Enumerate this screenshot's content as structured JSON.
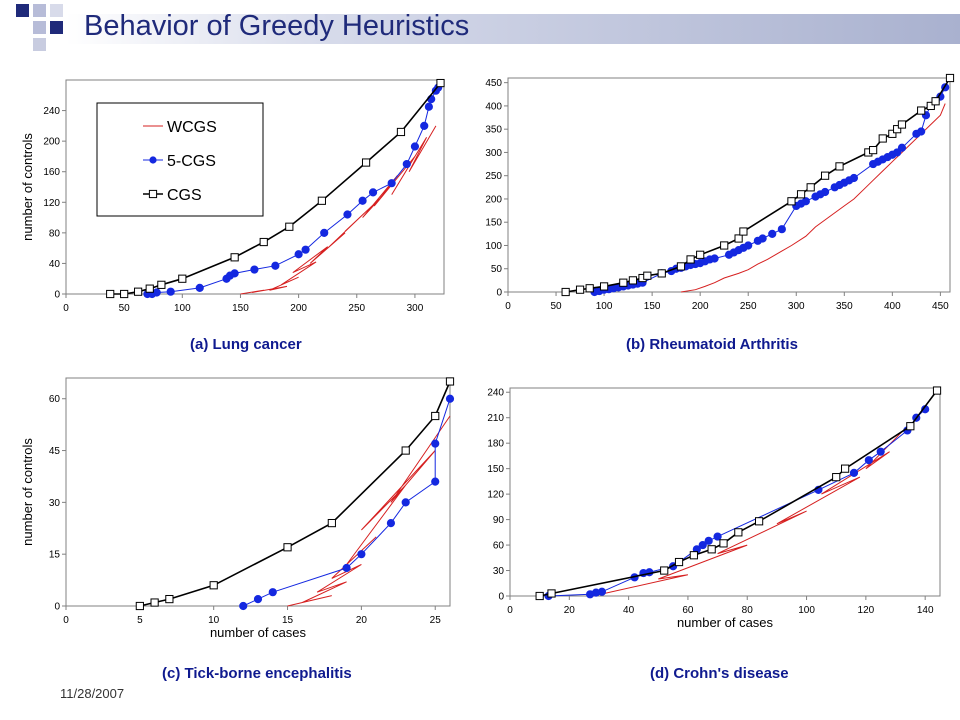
{
  "slide": {
    "title": "Behavior of Greedy Heuristics",
    "date": "11/28/2007",
    "colors": {
      "title": "#1f2a7a",
      "caption": "#0f1a8f",
      "wcgs": "#d62020",
      "cgs5": "#1428e0",
      "cgs": "#000000"
    }
  },
  "chart_data": [
    {
      "type": "line",
      "caption": "(a) Lung cancer",
      "xlabel": "",
      "ylabel": "number of controls",
      "xlim": [
        0,
        325
      ],
      "ylim": [
        0,
        280
      ],
      "xticks": [
        0,
        50,
        100,
        150,
        200,
        250,
        300
      ],
      "yticks": [
        0,
        40,
        80,
        120,
        160,
        200,
        240
      ],
      "legend": {
        "position": "top-left",
        "entries": [
          "WCGS",
          "5-CGS",
          "CGS"
        ]
      },
      "series": [
        {
          "name": "CGS",
          "marker": "square",
          "x": [
            38,
            50,
            62,
            72,
            82,
            100,
            145,
            170,
            192,
            220,
            258,
            288,
            322
          ],
          "y": [
            0,
            0,
            3,
            7,
            12,
            20,
            48,
            68,
            88,
            122,
            172,
            212,
            276
          ]
        },
        {
          "name": "5-CGS",
          "marker": "circle",
          "x": [
            70,
            74,
            78,
            90,
            115,
            138,
            141,
            145,
            162,
            180,
            200,
            206,
            222,
            242,
            255,
            264,
            280,
            293,
            300,
            308,
            312,
            314,
            318,
            320
          ],
          "y": [
            0,
            0,
            2,
            3,
            8,
            20,
            24,
            27,
            32,
            37,
            52,
            58,
            80,
            104,
            122,
            133,
            145,
            170,
            193,
            220,
            245,
            255,
            266,
            270
          ]
        },
        {
          "name": "WCGS",
          "x": [
            150,
            170,
            160,
            190,
            175,
            200,
            185,
            215,
            195,
            225,
            210,
            240,
            225,
            256,
            240,
            270,
            255,
            285,
            265,
            300,
            280,
            310,
            295,
            318
          ],
          "y": [
            0,
            5,
            2,
            10,
            5,
            22,
            12,
            42,
            28,
            62,
            40,
            80,
            60,
            105,
            82,
            125,
            100,
            155,
            115,
            180,
            130,
            205,
            160,
            220
          ]
        }
      ]
    },
    {
      "type": "line",
      "caption": "(b) Rheumatoid Arthritis",
      "xlabel": "",
      "ylabel": "",
      "xlim": [
        0,
        460
      ],
      "ylim": [
        0,
        460
      ],
      "xticks": [
        0,
        50,
        100,
        150,
        200,
        250,
        300,
        350,
        400,
        450
      ],
      "yticks": [
        0,
        50,
        100,
        150,
        200,
        250,
        300,
        350,
        400,
        450
      ],
      "series": [
        {
          "name": "CGS",
          "marker": "square",
          "x": [
            60,
            75,
            85,
            100,
            120,
            130,
            140,
            145,
            160,
            180,
            190,
            200,
            225,
            240,
            245,
            295,
            305,
            315,
            330,
            345,
            375,
            380,
            390,
            400,
            405,
            410,
            430,
            440,
            445,
            460
          ],
          "y": [
            0,
            5,
            8,
            12,
            20,
            25,
            30,
            35,
            40,
            55,
            70,
            80,
            100,
            115,
            130,
            195,
            210,
            225,
            250,
            270,
            300,
            305,
            330,
            340,
            350,
            360,
            390,
            400,
            410,
            460
          ]
        },
        {
          "name": "5-CGS",
          "marker": "circle",
          "x": [
            90,
            95,
            100,
            105,
            110,
            115,
            120,
            125,
            130,
            135,
            140,
            160,
            170,
            175,
            180,
            185,
            190,
            195,
            200,
            205,
            210,
            215,
            230,
            235,
            240,
            245,
            250,
            260,
            265,
            275,
            285,
            300,
            305,
            310,
            320,
            325,
            330,
            340,
            345,
            350,
            355,
            360,
            380,
            385,
            390,
            395,
            400,
            405,
            410,
            425,
            430,
            435,
            440,
            445,
            450,
            455
          ],
          "y": [
            0,
            2,
            5,
            6,
            8,
            10,
            12,
            14,
            16,
            18,
            20,
            40,
            45,
            50,
            52,
            55,
            58,
            60,
            62,
            66,
            70,
            72,
            80,
            85,
            90,
            95,
            100,
            110,
            115,
            125,
            135,
            185,
            190,
            195,
            205,
            210,
            215,
            225,
            230,
            235,
            240,
            245,
            275,
            280,
            285,
            290,
            295,
            300,
            310,
            340,
            345,
            380,
            400,
            410,
            420,
            440
          ]
        },
        {
          "name": "WCGS",
          "x": [
            180,
            195,
            205,
            215,
            225,
            240,
            250,
            260,
            270,
            285,
            295,
            310,
            320,
            330,
            340,
            350,
            360,
            370,
            380,
            390,
            400,
            410,
            420,
            430,
            440,
            450,
            455
          ],
          "y": [
            0,
            5,
            12,
            20,
            30,
            40,
            48,
            60,
            70,
            88,
            100,
            120,
            140,
            155,
            170,
            185,
            200,
            220,
            240,
            260,
            280,
            300,
            320,
            340,
            360,
            380,
            405
          ]
        }
      ]
    },
    {
      "type": "line",
      "caption": "(c) Tick-borne encephalitis",
      "xlabel": "number of cases",
      "ylabel": "number of controls",
      "xlim": [
        0,
        26
      ],
      "ylim": [
        0,
        66
      ],
      "xticks": [
        0,
        5,
        10,
        15,
        20,
        25
      ],
      "yticks": [
        0,
        15,
        30,
        45,
        60
      ],
      "series": [
        {
          "name": "CGS",
          "marker": "square",
          "x": [
            5,
            6,
            7,
            10,
            15,
            18,
            23,
            25,
            26
          ],
          "y": [
            0,
            1,
            2,
            6,
            17,
            24,
            45,
            55,
            65
          ]
        },
        {
          "name": "5-CGS",
          "marker": "circle",
          "x": [
            12,
            13,
            14,
            19,
            20,
            22,
            23,
            25,
            25,
            26
          ],
          "y": [
            0,
            2,
            4,
            11,
            15,
            24,
            30,
            36,
            47,
            60
          ]
        },
        {
          "name": "WCGS",
          "x": [
            15,
            18,
            16,
            19,
            17,
            20,
            18,
            21,
            19,
            23,
            20,
            25,
            22,
            26
          ],
          "y": [
            0,
            3,
            1,
            7,
            4,
            12,
            8,
            20,
            12,
            35,
            22,
            45,
            30,
            55
          ]
        }
      ]
    },
    {
      "type": "line",
      "caption": "(d) Crohn's disease",
      "xlabel": "number of cases",
      "ylabel": "",
      "xlim": [
        0,
        145
      ],
      "ylim": [
        0,
        245
      ],
      "xticks": [
        0,
        20,
        40,
        60,
        80,
        100,
        120,
        140
      ],
      "yticks": [
        0,
        30,
        60,
        90,
        120,
        150,
        180,
        210,
        240
      ],
      "series": [
        {
          "name": "CGS",
          "marker": "square",
          "x": [
            10,
            14,
            52,
            57,
            62,
            68,
            72,
            77,
            84,
            110,
            113,
            135,
            144
          ],
          "y": [
            0,
            3,
            30,
            40,
            48,
            55,
            62,
            75,
            88,
            140,
            150,
            200,
            242
          ]
        },
        {
          "name": "5-CGS",
          "marker": "circle",
          "x": [
            13,
            27,
            29,
            31,
            42,
            45,
            47,
            55,
            63,
            65,
            67,
            70,
            104,
            116,
            121,
            125,
            134,
            137,
            140
          ],
          "y": [
            0,
            2,
            4,
            5,
            22,
            27,
            28,
            35,
            55,
            60,
            65,
            70,
            125,
            145,
            160,
            170,
            195,
            210,
            220
          ]
        },
        {
          "name": "WCGS",
          "x": [
            28,
            60,
            50,
            80,
            70,
            100,
            90,
            118,
            105,
            128,
            120,
            134
          ],
          "y": [
            0,
            25,
            20,
            60,
            50,
            100,
            85,
            140,
            120,
            170,
            150,
            200
          ]
        }
      ]
    }
  ]
}
